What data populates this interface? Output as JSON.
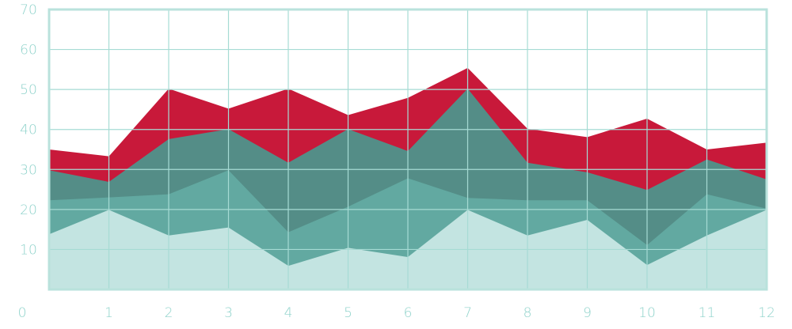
{
  "chart_data": {
    "type": "area",
    "stacked": false,
    "x": [
      0,
      1,
      2,
      3,
      4,
      5,
      6,
      7,
      8,
      9,
      10,
      11,
      12
    ],
    "xlim": [
      0,
      12
    ],
    "ylim": [
      0,
      70
    ],
    "y_ticks": [
      0,
      10,
      20,
      30,
      40,
      50,
      60,
      70
    ],
    "x_ticks": [
      0,
      1,
      2,
      3,
      4,
      5,
      6,
      7,
      8,
      9,
      10,
      11,
      12
    ],
    "grid": true,
    "legend": "none",
    "title": "",
    "xlabel": "",
    "ylabel": "",
    "series": [
      {
        "color": "#c8193a",
        "opacity": 1.0,
        "values": [
          35,
          33.3,
          50.2,
          45.2,
          50.2,
          43.6,
          47.9,
          55.4,
          40.2,
          38.1,
          42.7,
          35,
          36.7
        ]
      },
      {
        "color": "#3aa798",
        "opacity": 0.82,
        "values": [
          29.8,
          26.9,
          37.6,
          40.1,
          31.7,
          40.1,
          34.6,
          50.2,
          31.7,
          29.3,
          24.9,
          32.5,
          27.5
        ]
      },
      {
        "color": "#6ec1b6",
        "opacity": 0.55,
        "values": [
          22.3,
          23,
          23.8,
          29.8,
          14.3,
          20.7,
          27.8,
          22.9,
          22.3,
          22.3,
          11.1,
          23.8,
          20.2
        ]
      },
      {
        "color": "#c3e4e1",
        "opacity": 1.0,
        "values": [
          13.8,
          19.9,
          13.5,
          15.5,
          5.9,
          10.4,
          8.1,
          19.9,
          13.5,
          17.4,
          6.1,
          13.5,
          19.9
        ]
      }
    ],
    "colors": {
      "grid": "#a6dbd4",
      "frame": "#b9e2dc",
      "ticks": "#8fd3cb"
    }
  }
}
